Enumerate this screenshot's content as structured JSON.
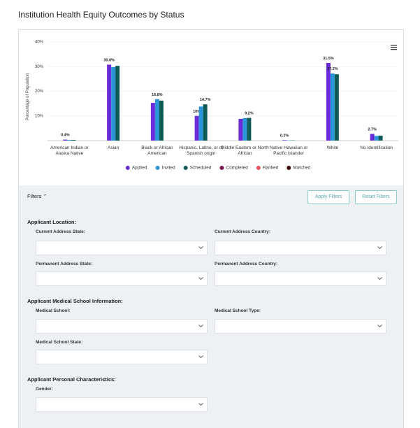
{
  "header": {
    "title": "Institution Health Equity Outcomes by Status"
  },
  "chart_data": {
    "type": "bar",
    "ylabel": "Percentage of Population",
    "categories": [
      "American Indian or Alaska Native",
      "Asian",
      "Black or African American",
      "Hispanic, Latino, or of Spanish origin",
      "Middle Eastern or North African",
      "Native Hawaiian or Pacific Islander",
      "White",
      "No Identification"
    ],
    "series": [
      {
        "name": "Applied",
        "color": "#6a2bd9",
        "values": [
          0.4,
          30.8,
          15.3,
          10,
          8.8,
          0.2,
          31.5,
          2.7
        ],
        "value_labels": [
          "0.4%",
          "30.8%",
          null,
          "10%",
          null,
          "0.2%",
          "31.5%",
          "2.7%"
        ]
      },
      {
        "name": "Invited",
        "color": "#2b94d8",
        "values": [
          0.3,
          29.8,
          16.8,
          13.8,
          9.1,
          0.1,
          27.2,
          1.9
        ],
        "value_labels": [
          null,
          null,
          "16.8%",
          null,
          null,
          null,
          "27.2%",
          null
        ]
      },
      {
        "name": "Scheduled",
        "color": "#0e5b58",
        "values": [
          0.3,
          30.3,
          16.2,
          14.7,
          9.2,
          0.1,
          26.9,
          2.0
        ],
        "value_labels": [
          null,
          null,
          null,
          "14.7%",
          "9.2%",
          null,
          null,
          null
        ]
      },
      {
        "name": "Completed",
        "color": "#7a1550",
        "values": [
          null,
          null,
          null,
          null,
          null,
          null,
          null,
          null
        ]
      },
      {
        "name": "Ranked",
        "color": "#e8545a",
        "values": [
          null,
          null,
          null,
          null,
          null,
          null,
          null,
          null
        ]
      },
      {
        "name": "Matched",
        "color": "#3b0b0b",
        "values": [
          null,
          null,
          null,
          null,
          null,
          null,
          null,
          null
        ]
      }
    ],
    "ylim": [
      0,
      40
    ],
    "yticks": [
      {
        "value": 10,
        "label": "10%"
      },
      {
        "value": 20,
        "label": "20%"
      },
      {
        "value": 30,
        "label": "30%"
      },
      {
        "value": 40,
        "label": "40%"
      }
    ],
    "grid": true,
    "legend": "bottom"
  },
  "filters": {
    "toggle": "Filters",
    "buttons": [
      "Apply Filters",
      "Reset Filters"
    ],
    "sections": [
      {
        "title": "Applicant Location:",
        "fields": [
          "Current Address State:",
          "Current Address Country:",
          "Permanent Address State:",
          "Permanent Address Country:"
        ]
      },
      {
        "title": "Applicant Medical School Information:",
        "fields": [
          "Medical School:",
          "Medical School Type:",
          "Medical School State:"
        ]
      },
      {
        "title": "Applicant Personal Characteristics:",
        "fields": [
          "Gender:"
        ]
      }
    ]
  }
}
